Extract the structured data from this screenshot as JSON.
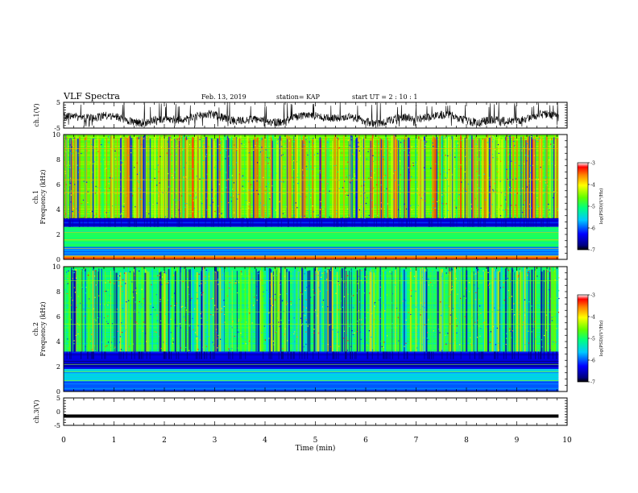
{
  "header": {
    "title": "VLF Spectra",
    "date": "Feb. 13, 2019",
    "station": "station= KAP",
    "start": "start  UT =   2 : 10 : 1"
  },
  "chart_data": [
    {
      "type": "line",
      "panel": "ch1-waveform",
      "ylabel": "ch.1(V)",
      "ylim": [
        -5,
        5
      ],
      "yticks": [
        "5",
        "-5"
      ],
      "xlim": [
        0,
        10
      ],
      "note_values": "Dense noisy waveform; mean about -1.5 V, swing roughly -4.5 to 5 V, data spans 0 to 9.83 min"
    },
    {
      "type": "heatmap",
      "panel": "ch1-spectrogram",
      "ylabel": "ch.1\nFrequency  (kHz)",
      "ylabel_lines": [
        "ch.1",
        "Frequency  (kHz)"
      ],
      "ylim": [
        0,
        10
      ],
      "yticks": [
        "0",
        "2",
        "4",
        "6",
        "8",
        "10"
      ],
      "xlim": [
        0,
        10
      ],
      "x_data_end": 9.83,
      "colorbar": {
        "label": "log(PSD)(V²/Hz)",
        "range": [
          -7,
          -3
        ],
        "ticks": [
          "-3",
          "-4",
          "-5",
          "-6",
          "-7"
        ]
      },
      "bands": [
        {
          "f": [
            0,
            0.3
          ],
          "level": -3.5
        },
        {
          "f": [
            0.3,
            1.0
          ],
          "level": -5.8
        },
        {
          "f": [
            1.0,
            2.6
          ],
          "level": -5.0
        },
        {
          "f": [
            2.6,
            3.3
          ],
          "level": -6.4
        },
        {
          "f": [
            3.3,
            10
          ],
          "level": -4.6
        }
      ]
    },
    {
      "type": "heatmap",
      "panel": "ch2-spectrogram",
      "ylabel": "ch.2\nFrequency  (kHz)",
      "ylabel_lines": [
        "ch.2",
        "Frequency  (kHz)"
      ],
      "ylim": [
        0,
        10
      ],
      "yticks": [
        "0",
        "2",
        "4",
        "6",
        "8",
        "10"
      ],
      "xlim": [
        0,
        10
      ],
      "x_data_end": 9.83,
      "colorbar": {
        "label": "log(PSD)(V²/Hz)",
        "range": [
          -7,
          -3
        ],
        "ticks": [
          "-3",
          "-4",
          "-5",
          "-6",
          "-7"
        ]
      },
      "bands": [
        {
          "f": [
            0,
            0.8
          ],
          "level": -6.0
        },
        {
          "f": [
            0.8,
            1.8
          ],
          "level": -5.6
        },
        {
          "f": [
            1.8,
            3.2
          ],
          "level": -6.4
        },
        {
          "f": [
            3.2,
            10
          ],
          "level": -5.0
        }
      ]
    },
    {
      "type": "line",
      "panel": "ch3-waveform",
      "ylabel": "ch.3(V)",
      "ylim": [
        -5,
        5
      ],
      "yticks": [
        "5",
        "0",
        "-5"
      ],
      "xlim": [
        0,
        10
      ],
      "xlabel": "Time  (min)",
      "xticks": [
        "0",
        "1",
        "2",
        "3",
        "4",
        "5",
        "6",
        "7",
        "8",
        "9",
        "10"
      ],
      "constant_value": -1.6,
      "x_data_end": 9.83
    }
  ]
}
